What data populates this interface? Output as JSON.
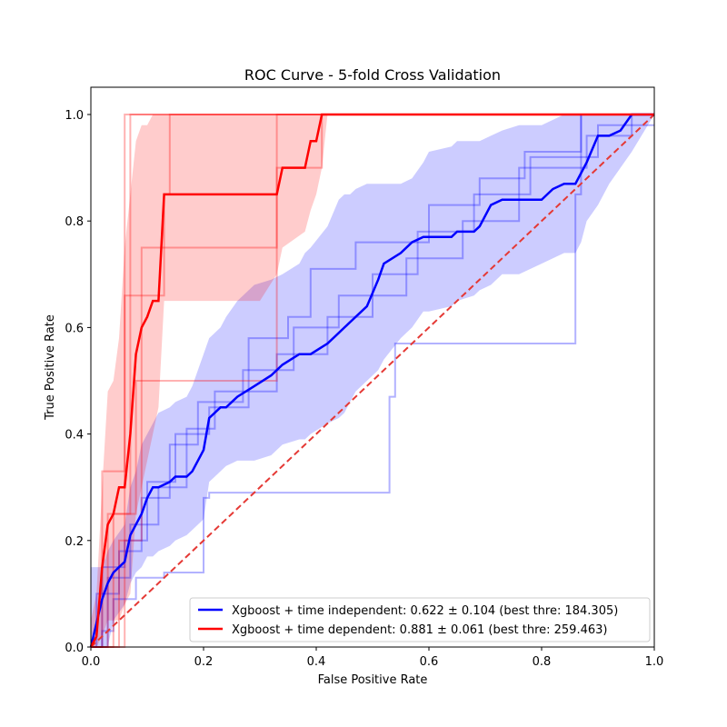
{
  "chart_data": {
    "type": "line",
    "title": "ROC Curve - 5-fold Cross Validation",
    "xlabel": "False Positive Rate",
    "ylabel": "True Positive Rate",
    "xlim": [
      0,
      1
    ],
    "ylim": [
      0,
      1
    ],
    "xticks": [
      "0.0",
      "0.2",
      "0.4",
      "0.6",
      "0.8",
      "1.0"
    ],
    "yticks": [
      "0.0",
      "0.2",
      "0.4",
      "0.6",
      "0.8",
      "1.0"
    ],
    "grid": false,
    "legend_position": "lower-right",
    "colors": {
      "independent": "#0000ff",
      "dependent": "#ff0000",
      "chance": "#e53935"
    },
    "series": [
      {
        "name": "Xgboost + time independent: 0.622 ± 0.104 (best thre: 184.305)",
        "color": "#0000ff",
        "x": [
          0,
          0.02,
          0.03,
          0.04,
          0.06,
          0.07,
          0.08,
          0.09,
          0.1,
          0.11,
          0.12,
          0.14,
          0.15,
          0.17,
          0.18,
          0.19,
          0.2,
          0.21,
          0.22,
          0.23,
          0.24,
          0.26,
          0.29,
          0.32,
          0.34,
          0.37,
          0.38,
          0.39,
          0.42,
          0.44,
          0.45,
          0.46,
          0.47,
          0.49,
          0.51,
          0.52,
          0.55,
          0.57,
          0.59,
          0.6,
          0.64,
          0.65,
          0.68,
          0.69,
          0.71,
          0.73,
          0.76,
          0.8,
          0.82,
          0.84,
          0.86,
          0.87,
          0.88,
          0.9,
          0.92,
          0.94,
          0.96,
          1.0
        ],
        "y": [
          0,
          0.09,
          0.12,
          0.14,
          0.16,
          0.21,
          0.23,
          0.25,
          0.28,
          0.3,
          0.3,
          0.31,
          0.32,
          0.32,
          0.33,
          0.35,
          0.37,
          0.43,
          0.44,
          0.45,
          0.45,
          0.47,
          0.49,
          0.51,
          0.53,
          0.55,
          0.55,
          0.55,
          0.57,
          0.59,
          0.6,
          0.61,
          0.62,
          0.64,
          0.69,
          0.72,
          0.74,
          0.76,
          0.77,
          0.77,
          0.77,
          0.78,
          0.78,
          0.79,
          0.83,
          0.84,
          0.84,
          0.84,
          0.86,
          0.87,
          0.87,
          0.89,
          0.91,
          0.96,
          0.96,
          0.97,
          1.0,
          1.0
        ],
        "std_upper": [
          0.15,
          0.15,
          0.18,
          0.2,
          0.23,
          0.3,
          0.33,
          0.38,
          0.4,
          0.42,
          0.44,
          0.45,
          0.46,
          0.47,
          0.49,
          0.52,
          0.55,
          0.58,
          0.59,
          0.6,
          0.62,
          0.65,
          0.68,
          0.69,
          0.7,
          0.72,
          0.74,
          0.75,
          0.79,
          0.84,
          0.85,
          0.85,
          0.86,
          0.87,
          0.87,
          0.87,
          0.87,
          0.88,
          0.91,
          0.93,
          0.94,
          0.95,
          0.95,
          0.95,
          0.96,
          0.97,
          0.98,
          0.98,
          0.99,
          1.0,
          1.0,
          1.0,
          1.0,
          1.0,
          1.0,
          1.0,
          1.0,
          1.0
        ],
        "std_lower": [
          0.0,
          0.0,
          0.0,
          0.05,
          0.08,
          0.12,
          0.14,
          0.15,
          0.17,
          0.17,
          0.18,
          0.19,
          0.2,
          0.21,
          0.22,
          0.23,
          0.24,
          0.31,
          0.32,
          0.33,
          0.34,
          0.35,
          0.35,
          0.36,
          0.38,
          0.39,
          0.39,
          0.4,
          0.42,
          0.43,
          0.44,
          0.46,
          0.48,
          0.5,
          0.52,
          0.54,
          0.58,
          0.6,
          0.63,
          0.63,
          0.64,
          0.65,
          0.66,
          0.67,
          0.68,
          0.7,
          0.7,
          0.72,
          0.73,
          0.74,
          0.74,
          0.76,
          0.8,
          0.83,
          0.87,
          0.9,
          0.93,
          1.0
        ]
      },
      {
        "name": "Xgboost + time dependent: 0.881 ± 0.061 (best thre: 259.463)",
        "color": "#ff0000",
        "x": [
          0,
          0.01,
          0.02,
          0.03,
          0.04,
          0.05,
          0.06,
          0.07,
          0.08,
          0.09,
          0.1,
          0.11,
          0.12,
          0.13,
          0.15,
          0.2,
          0.25,
          0.3,
          0.33,
          0.34,
          0.38,
          0.39,
          0.4,
          0.41,
          0.42,
          0.45,
          0.5,
          0.6,
          0.8,
          1.0
        ],
        "y": [
          0,
          0.02,
          0.15,
          0.23,
          0.25,
          0.3,
          0.3,
          0.4,
          0.55,
          0.6,
          0.62,
          0.65,
          0.65,
          0.85,
          0.85,
          0.85,
          0.85,
          0.85,
          0.85,
          0.9,
          0.9,
          0.95,
          0.95,
          1.0,
          1.0,
          1.0,
          1.0,
          1.0,
          1.0,
          1.0
        ],
        "std_upper": [
          0.05,
          0.1,
          0.3,
          0.48,
          0.5,
          0.58,
          0.75,
          0.85,
          0.95,
          0.98,
          0.98,
          1.0,
          1.0,
          1.0,
          1.0,
          1.0,
          1.0,
          1.0,
          1.0,
          1.0,
          1.0,
          1.0,
          1.0,
          1.0,
          1.0,
          1.0,
          1.0,
          1.0,
          1.0,
          1.0
        ],
        "std_lower": [
          0,
          0,
          0.02,
          0.05,
          0.05,
          0.05,
          0.08,
          0.1,
          0.25,
          0.3,
          0.35,
          0.4,
          0.45,
          0.65,
          0.65,
          0.65,
          0.65,
          0.65,
          0.7,
          0.75,
          0.78,
          0.82,
          0.85,
          0.9,
          1.0,
          1.0,
          1.0,
          1.0,
          1.0,
          1.0
        ]
      }
    ],
    "folds_independent": [
      {
        "x": [
          0,
          0.02,
          0.02,
          0.04,
          0.04,
          0.08,
          0.08,
          0.13,
          0.13,
          0.2,
          0.2,
          0.21,
          0.21,
          0.53,
          0.53,
          0.54,
          0.54,
          0.86,
          0.86,
          0.87,
          0.87,
          1.0
        ],
        "y": [
          0,
          0,
          0.03,
          0.03,
          0.09,
          0.09,
          0.13,
          0.13,
          0.14,
          0.14,
          0.28,
          0.28,
          0.29,
          0.29,
          0.47,
          0.47,
          0.57,
          0.57,
          0.85,
          0.85,
          1.0,
          1.0
        ]
      },
      {
        "x": [
          0,
          0.02,
          0.02,
          0.06,
          0.06,
          0.1,
          0.1,
          0.15,
          0.15,
          0.21,
          0.21,
          0.28,
          0.28,
          0.35,
          0.35,
          0.39,
          0.39,
          0.47,
          0.47,
          0.6,
          0.6,
          0.69,
          0.69,
          0.77,
          0.77,
          0.87,
          0.87,
          1.0
        ],
        "y": [
          0,
          0,
          0.15,
          0.15,
          0.2,
          0.2,
          0.31,
          0.31,
          0.4,
          0.4,
          0.45,
          0.45,
          0.58,
          0.58,
          0.62,
          0.62,
          0.71,
          0.71,
          0.76,
          0.76,
          0.83,
          0.83,
          0.88,
          0.88,
          0.93,
          0.93,
          1.0,
          1.0
        ]
      },
      {
        "x": [
          0,
          0.03,
          0.03,
          0.07,
          0.07,
          0.12,
          0.12,
          0.17,
          0.17,
          0.22,
          0.22,
          0.33,
          0.33,
          0.42,
          0.42,
          0.5,
          0.5,
          0.58,
          0.58,
          0.68,
          0.68,
          0.78,
          0.78,
          0.9,
          0.9,
          1.0
        ],
        "y": [
          0,
          0,
          0.13,
          0.13,
          0.23,
          0.23,
          0.3,
          0.3,
          0.41,
          0.41,
          0.48,
          0.48,
          0.55,
          0.55,
          0.62,
          0.62,
          0.7,
          0.7,
          0.78,
          0.78,
          0.85,
          0.85,
          0.92,
          0.92,
          0.98,
          0.98
        ]
      },
      {
        "x": [
          0,
          0.01,
          0.01,
          0.05,
          0.05,
          0.09,
          0.09,
          0.14,
          0.14,
          0.19,
          0.19,
          0.27,
          0.27,
          0.36,
          0.36,
          0.44,
          0.44,
          0.56,
          0.56,
          0.66,
          0.66,
          0.76,
          0.76,
          0.88,
          0.88,
          0.96,
          0.96,
          1.0
        ],
        "y": [
          0,
          0,
          0.1,
          0.1,
          0.18,
          0.18,
          0.28,
          0.28,
          0.38,
          0.38,
          0.46,
          0.46,
          0.52,
          0.52,
          0.6,
          0.6,
          0.66,
          0.66,
          0.73,
          0.73,
          0.8,
          0.8,
          0.9,
          0.9,
          0.96,
          0.96,
          1.0,
          1.0
        ]
      }
    ],
    "folds_dependent": [
      {
        "x": [
          0,
          0.02,
          0.02,
          0.06,
          0.06,
          0.13,
          0.13,
          0.14,
          0.14,
          0.35,
          0.35,
          1.0
        ],
        "y": [
          0,
          0,
          0.33,
          0.33,
          0.66,
          0.66,
          0.85,
          0.85,
          1.0,
          1.0,
          1.0,
          1.0
        ]
      },
      {
        "x": [
          0,
          0.03,
          0.03,
          0.07,
          0.07,
          0.12,
          0.12,
          0.34,
          0.34,
          0.41,
          0.41,
          1.0
        ],
        "y": [
          0,
          0,
          0.25,
          0.25,
          1.0,
          1.0,
          1.0,
          1.0,
          1.0,
          1.0,
          1.0,
          1.0
        ]
      },
      {
        "x": [
          0,
          0.04,
          0.04,
          0.08,
          0.08,
          0.09,
          0.09,
          0.33,
          0.33,
          0.41,
          0.41,
          1.0
        ],
        "y": [
          0,
          0,
          0.25,
          0.25,
          0.5,
          0.5,
          0.75,
          0.75,
          0.9,
          0.9,
          1.0,
          1.0
        ]
      },
      {
        "x": [
          0,
          0.05,
          0.05,
          0.09,
          0.09,
          0.1,
          0.1,
          0.33,
          0.33,
          1.0
        ],
        "y": [
          0,
          0,
          0.2,
          0.2,
          0.5,
          0.5,
          0.5,
          0.5,
          1.0,
          1.0
        ]
      },
      {
        "x": [
          0,
          0.06,
          0.06,
          0.08,
          0.08,
          0.09,
          0.09,
          0.11,
          0.11,
          0.13,
          0.13,
          0.16,
          0.16,
          1.0
        ],
        "y": [
          0,
          0,
          1.0,
          1.0,
          1.0,
          1.0,
          1.0,
          1.0,
          1.0,
          1.0,
          1.0,
          1.0,
          1.0,
          1.0
        ]
      }
    ],
    "chance_line": {
      "x": [
        0,
        1
      ],
      "y": [
        0,
        1
      ]
    }
  }
}
